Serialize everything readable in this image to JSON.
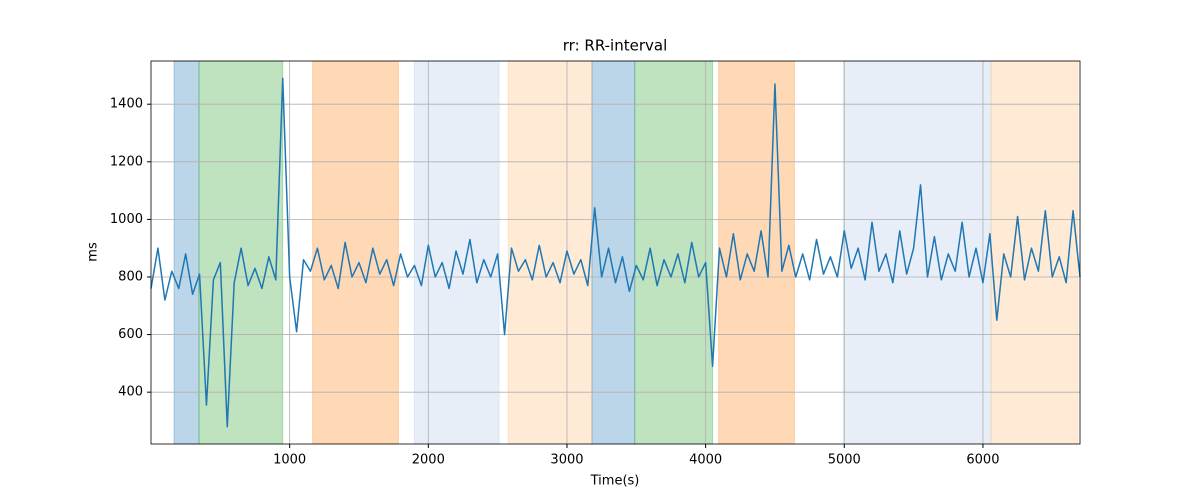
{
  "chart_data": {
    "type": "line",
    "title": "rr: RR-interval",
    "xlabel": "Time(s)",
    "ylabel": "ms",
    "xlim": [
      0,
      6700
    ],
    "ylim": [
      220,
      1550
    ],
    "xticks": [
      1000,
      2000,
      3000,
      4000,
      5000,
      6000
    ],
    "yticks": [
      400,
      600,
      800,
      1000,
      1200,
      1400
    ],
    "grid": true,
    "spans": [
      {
        "x": [
          166,
          346
        ],
        "color": "#1f77b4"
      },
      {
        "x": [
          346,
          950
        ],
        "color": "#2ca02c"
      },
      {
        "x": [
          1166,
          1784
        ],
        "color": "#ff7f0e"
      },
      {
        "x": [
          1899,
          2511
        ],
        "color": "#aec7e8"
      },
      {
        "x": [
          2576,
          3180
        ],
        "color": "#ffbb78"
      },
      {
        "x": [
          3180,
          3489
        ],
        "color": "#1f77b4"
      },
      {
        "x": [
          3489,
          4050
        ],
        "color": "#2ca02c"
      },
      {
        "x": [
          4094,
          4640
        ],
        "color": "#ff7f0e"
      },
      {
        "x": [
          4993,
          6058
        ],
        "color": "#aec7e8"
      },
      {
        "x": [
          6058,
          6683
        ],
        "color": "#ffbb78"
      }
    ],
    "x": [
      0,
      50,
      100,
      150,
      200,
      250,
      300,
      350,
      400,
      450,
      500,
      550,
      600,
      650,
      700,
      750,
      800,
      850,
      900,
      950,
      1000,
      1050,
      1100,
      1150,
      1200,
      1250,
      1300,
      1350,
      1400,
      1450,
      1500,
      1550,
      1600,
      1650,
      1700,
      1750,
      1800,
      1850,
      1900,
      1950,
      2000,
      2050,
      2100,
      2150,
      2200,
      2250,
      2300,
      2350,
      2400,
      2450,
      2500,
      2550,
      2600,
      2650,
      2700,
      2750,
      2800,
      2850,
      2900,
      2950,
      3000,
      3050,
      3100,
      3150,
      3200,
      3250,
      3300,
      3350,
      3400,
      3450,
      3500,
      3550,
      3600,
      3650,
      3700,
      3750,
      3800,
      3850,
      3900,
      3950,
      4000,
      4050,
      4100,
      4150,
      4200,
      4250,
      4300,
      4350,
      4400,
      4450,
      4500,
      4550,
      4600,
      4650,
      4700,
      4750,
      4800,
      4850,
      4900,
      4950,
      5000,
      5050,
      5100,
      5150,
      5200,
      5250,
      5300,
      5350,
      5400,
      5450,
      5500,
      5550,
      5600,
      5650,
      5700,
      5750,
      5800,
      5850,
      5900,
      5950,
      6000,
      6050,
      6100,
      6150,
      6200,
      6250,
      6300,
      6350,
      6400,
      6450,
      6500,
      6550,
      6600,
      6650,
      6700
    ],
    "series": [
      {
        "color": "#1f77b4",
        "values": [
          760,
          900,
          720,
          820,
          760,
          880,
          740,
          810,
          355,
          790,
          850,
          280,
          780,
          900,
          770,
          830,
          760,
          870,
          790,
          1490,
          800,
          610,
          860,
          820,
          900,
          790,
          840,
          760,
          920,
          800,
          850,
          780,
          900,
          810,
          860,
          770,
          880,
          800,
          840,
          770,
          910,
          800,
          850,
          760,
          890,
          810,
          930,
          780,
          860,
          800,
          880,
          600,
          900,
          820,
          860,
          790,
          910,
          800,
          850,
          780,
          890,
          810,
          860,
          770,
          1040,
          800,
          900,
          780,
          870,
          750,
          840,
          790,
          900,
          770,
          860,
          800,
          880,
          780,
          920,
          800,
          850,
          490,
          900,
          800,
          950,
          790,
          880,
          820,
          960,
          800,
          1470,
          820,
          910,
          800,
          880,
          790,
          930,
          810,
          870,
          800,
          960,
          830,
          900,
          790,
          990,
          820,
          880,
          780,
          960,
          810,
          900,
          1120,
          800,
          940,
          790,
          880,
          820,
          990,
          800,
          900,
          780,
          950,
          650,
          880,
          800,
          1010,
          790,
          900,
          820,
          1030,
          800,
          870,
          780,
          1030,
          800
        ]
      }
    ]
  }
}
